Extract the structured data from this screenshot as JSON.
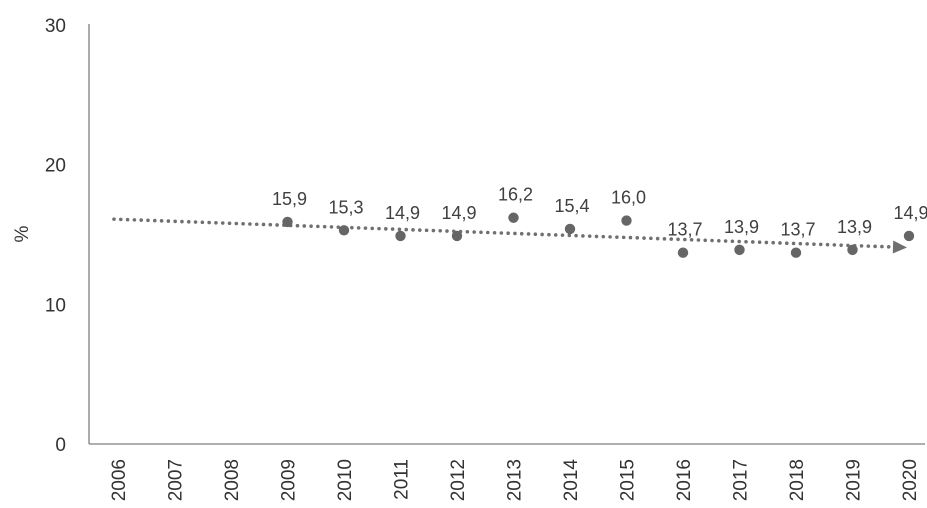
{
  "chart_data": {
    "type": "scatter",
    "ylabel": "%",
    "xlabel": "",
    "ylim": [
      0,
      30
    ],
    "yticks": [
      "0",
      "10",
      "20",
      "30"
    ],
    "categories": [
      "2006",
      "2007",
      "2008",
      "2009",
      "2010",
      "2011",
      "2012",
      "2013",
      "2014",
      "2015",
      "2016",
      "2017",
      "2018",
      "2019",
      "2020"
    ],
    "points": [
      {
        "x": "2009",
        "y": 15.9,
        "label": "15,9"
      },
      {
        "x": "2010",
        "y": 15.3,
        "label": "15,3"
      },
      {
        "x": "2011",
        "y": 14.9,
        "label": "14,9"
      },
      {
        "x": "2012",
        "y": 14.9,
        "label": "14,9"
      },
      {
        "x": "2013",
        "y": 16.2,
        "label": "16,2"
      },
      {
        "x": "2014",
        "y": 15.4,
        "label": "15,4"
      },
      {
        "x": "2015",
        "y": 16.0,
        "label": "16,0"
      },
      {
        "x": "2016",
        "y": 13.7,
        "label": "13,7"
      },
      {
        "x": "2017",
        "y": 13.9,
        "label": "13,9"
      },
      {
        "x": "2018",
        "y": 13.7,
        "label": "13,7"
      },
      {
        "x": "2019",
        "y": 13.9,
        "label": "13,9"
      },
      {
        "x": "2020",
        "y": 14.9,
        "label": "14,9"
      }
    ],
    "trendline": {
      "style": "dotted",
      "arrow": true,
      "x_start": "2006",
      "y_start": 16.1,
      "x_end": "2020",
      "y_end": 14.1
    },
    "colors": {
      "points": "#666666",
      "trend": "#707070",
      "axis": "#7f7f7f",
      "text": "#333333"
    },
    "grid": false,
    "legend": "none"
  }
}
